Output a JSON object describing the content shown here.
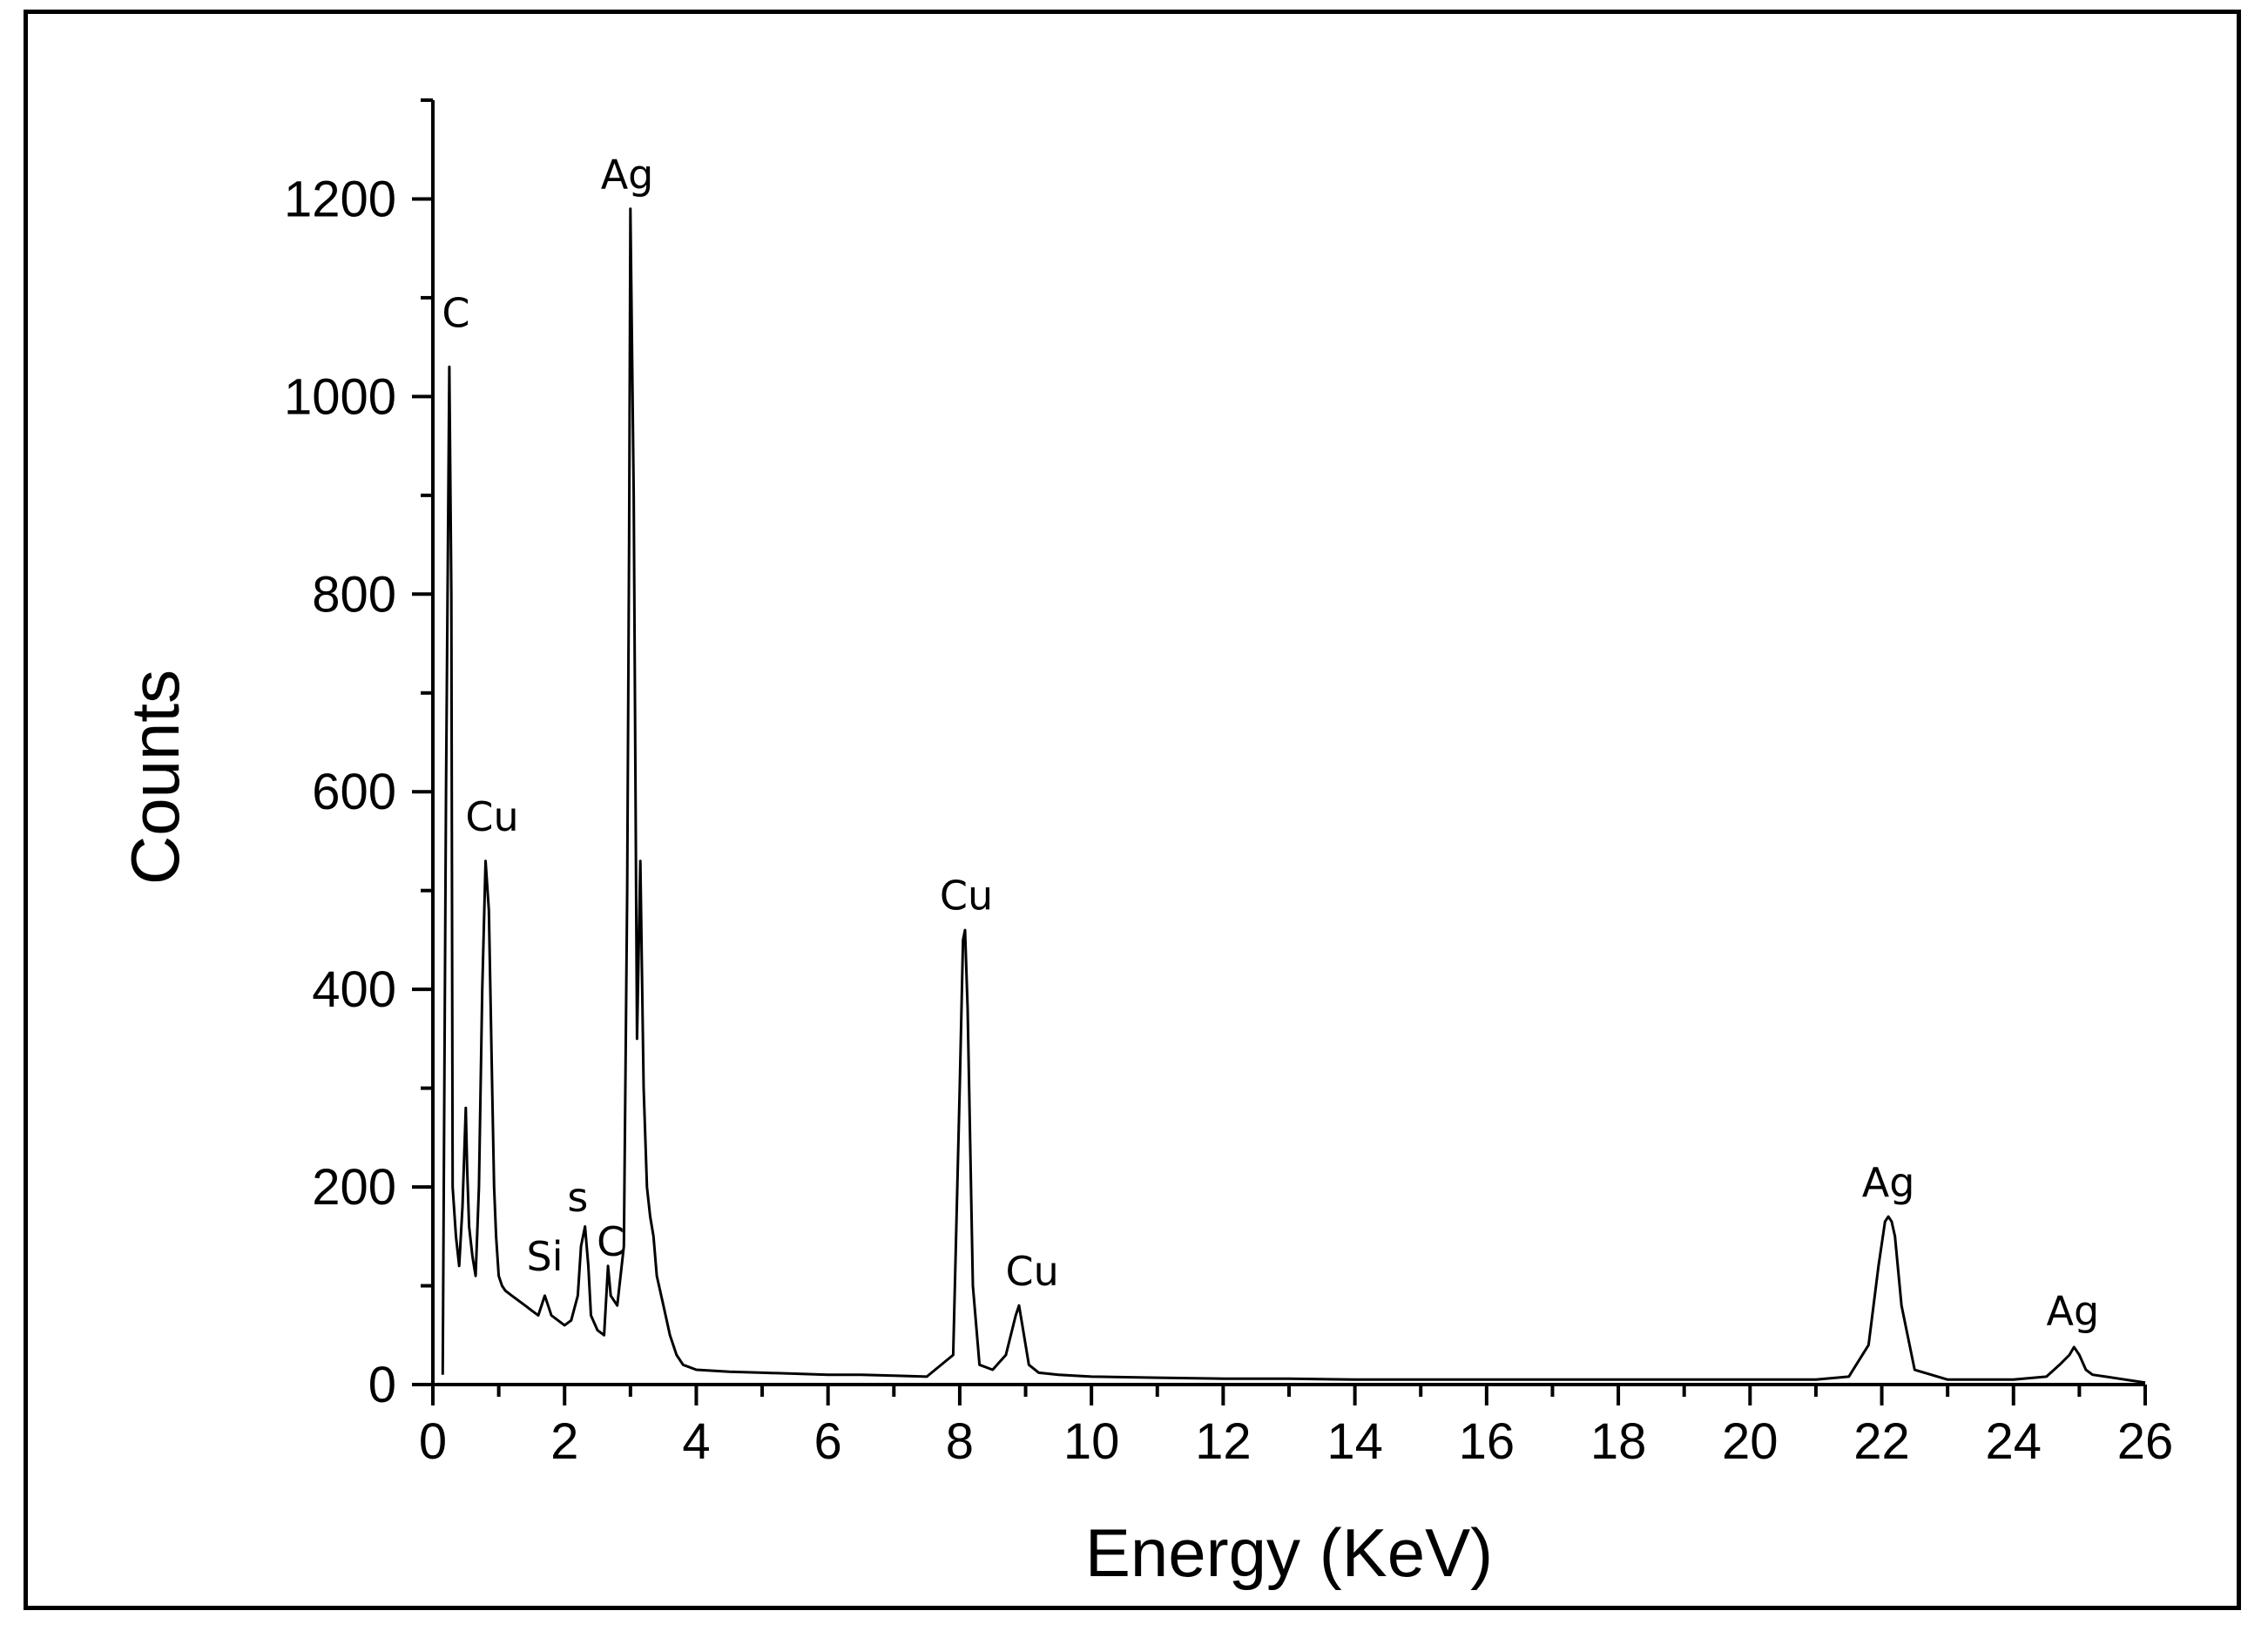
{
  "chart_data": {
    "type": "line",
    "title": "",
    "xlabel": "Energy (KeV)",
    "ylabel": "Counts",
    "xlim": [
      0,
      26
    ],
    "ylim": [
      0,
      1300
    ],
    "xticks": [
      0,
      2,
      4,
      6,
      8,
      10,
      12,
      14,
      16,
      18,
      20,
      22,
      24,
      26
    ],
    "yticks": [
      0,
      200,
      400,
      600,
      800,
      1000,
      1200
    ],
    "grid": false,
    "legend": "none",
    "series": [
      {
        "color": "#000000",
        "x": [
          0.15,
          0.2,
          0.25,
          0.28,
          0.3,
          0.35,
          0.4,
          0.45,
          0.5,
          0.52,
          0.55,
          0.6,
          0.65,
          0.7,
          0.75,
          0.8,
          0.85,
          0.9,
          0.93,
          0.96,
          1.0,
          1.05,
          1.1,
          1.2,
          1.3,
          1.4,
          1.5,
          1.6,
          1.7,
          1.75,
          1.8,
          1.9,
          2.0,
          2.1,
          2.2,
          2.25,
          2.31,
          2.36,
          2.4,
          2.5,
          2.6,
          2.66,
          2.7,
          2.8,
          2.9,
          2.95,
          2.98,
          3.0,
          3.05,
          3.1,
          3.15,
          3.2,
          3.25,
          3.3,
          3.35,
          3.4,
          3.5,
          3.6,
          3.7,
          3.8,
          4.0,
          4.5,
          5.0,
          5.5,
          6.0,
          6.5,
          7.0,
          7.5,
          7.9,
          8.0,
          8.05,
          8.08,
          8.12,
          8.2,
          8.3,
          8.5,
          8.7,
          8.85,
          8.9,
          8.95,
          9.05,
          9.2,
          9.5,
          10.0,
          11,
          12,
          13,
          14,
          15,
          16,
          17,
          18,
          19,
          20,
          21,
          21.5,
          21.8,
          21.95,
          22.05,
          22.1,
          22.15,
          22.2,
          22.3,
          22.5,
          23,
          23.5,
          24,
          24.5,
          24.7,
          24.85,
          24.92,
          25.0,
          25.1,
          25.2,
          25.4,
          25.6,
          25.8,
          26
        ],
        "y": [
          10,
          600,
          1030,
          800,
          200,
          150,
          120,
          180,
          280,
          220,
          160,
          130,
          110,
          200,
          400,
          530,
          480,
          300,
          200,
          150,
          110,
          100,
          95,
          90,
          85,
          80,
          75,
          70,
          90,
          80,
          70,
          65,
          60,
          65,
          90,
          140,
          160,
          120,
          70,
          55,
          50,
          120,
          90,
          80,
          140,
          500,
          850,
          1190,
          900,
          350,
          530,
          300,
          200,
          170,
          150,
          110,
          80,
          50,
          30,
          20,
          15,
          13,
          12,
          11,
          10,
          10,
          9,
          8,
          30,
          300,
          450,
          460,
          380,
          100,
          20,
          15,
          30,
          70,
          80,
          60,
          20,
          12,
          10,
          8,
          7,
          6,
          6,
          5,
          5,
          5,
          5,
          5,
          5,
          5,
          5,
          8,
          40,
          120,
          165,
          170,
          165,
          150,
          80,
          15,
          5,
          5,
          5,
          8,
          20,
          30,
          38,
          30,
          15,
          10,
          8,
          6,
          4,
          2
        ]
      }
    ],
    "annotations": [
      {
        "text": "C",
        "x": 0.35,
        "y": 1060
      },
      {
        "text": "Cu",
        "x": 0.9,
        "y": 550
      },
      {
        "text": "Ag",
        "x": 2.95,
        "y": 1200
      },
      {
        "text": "s",
        "x": 2.2,
        "y": 165
      },
      {
        "text": "Si",
        "x": 1.7,
        "y": 105
      },
      {
        "text": "C",
        "x": 2.7,
        "y": 120
      },
      {
        "text": "Cu",
        "x": 8.1,
        "y": 470
      },
      {
        "text": "Cu",
        "x": 9.1,
        "y": 90
      },
      {
        "text": "Ag",
        "x": 22.1,
        "y": 180
      },
      {
        "text": "Ag",
        "x": 24.9,
        "y": 50
      }
    ]
  }
}
